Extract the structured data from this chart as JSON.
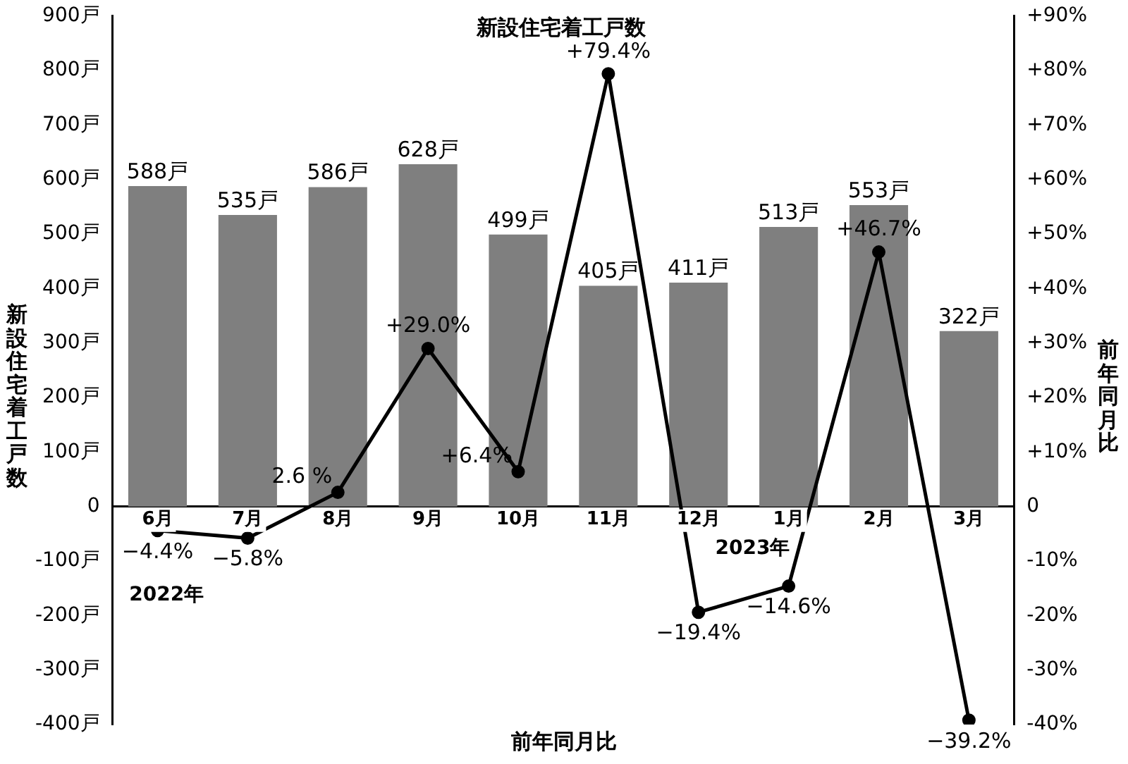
{
  "chart_data": {
    "type": "bar",
    "title": "新設住宅着工戸数",
    "xlabel": "前年同月比",
    "ylabel": "新設住宅着工戸数",
    "y2label": "前年同月比",
    "categories": [
      "6月",
      "7月",
      "8月",
      "9月",
      "10月",
      "11月",
      "12月",
      "1月",
      "2月",
      "3月"
    ],
    "series": [
      {
        "color": "#7f7f7f",
        "values": [
          588,
          535,
          586,
          628,
          499,
          405,
          411,
          513,
          553,
          322
        ],
        "value_labels": [
          "588戸",
          "535戸",
          "586戸",
          "628戸",
          "499戸",
          "405戸",
          "411戸",
          "513戸",
          "553戸",
          "322戸"
        ]
      },
      {
        "type": "line",
        "axis": "y2",
        "color": "#000000",
        "values": [
          -4.4,
          -5.8,
          2.6,
          29.0,
          6.4,
          79.4,
          -19.4,
          -14.6,
          46.7,
          -39.2
        ],
        "value_labels": [
          "−4.4%",
          "−5.8%",
          "2.6 %",
          "+29.0%",
          "+6.4%",
          "+79.4%",
          "−19.4%",
          "−14.6%",
          "+46.7%",
          "−39.2%"
        ]
      }
    ],
    "ylim": [
      -400,
      900
    ],
    "yticks": [
      {
        "value": -400,
        "label": "-400戸"
      },
      {
        "value": -300,
        "label": "-300戸"
      },
      {
        "value": -200,
        "label": "-200戸"
      },
      {
        "value": -100,
        "label": "-100戸"
      },
      0,
      {
        "value": 100,
        "label": "100戸"
      },
      {
        "value": 200,
        "label": "200戸"
      },
      {
        "value": 300,
        "label": "300戸"
      },
      {
        "value": 400,
        "label": "400戸"
      },
      {
        "value": 500,
        "label": "500戸"
      },
      {
        "value": 600,
        "label": "600戸"
      },
      {
        "value": 700,
        "label": "700戸"
      },
      {
        "value": 800,
        "label": "800戸"
      },
      {
        "value": 900,
        "label": "900戸"
      }
    ],
    "y2lim": [
      -40,
      90
    ],
    "y2ticks": [
      {
        "value": -40,
        "label": "-40%"
      },
      {
        "value": -30,
        "label": "-30%"
      },
      {
        "value": -20,
        "label": "-20%"
      },
      {
        "value": -10,
        "label": "-10%"
      },
      0,
      {
        "value": 10,
        "label": "+10%"
      },
      {
        "value": 20,
        "label": "+20%"
      },
      {
        "value": 30,
        "label": "+30%"
      },
      {
        "value": 40,
        "label": "+40%"
      },
      {
        "value": 50,
        "label": "+50%"
      },
      {
        "value": 60,
        "label": "+60%"
      },
      {
        "value": 70,
        "label": "+70%"
      },
      {
        "value": 80,
        "label": "+80%"
      },
      {
        "value": 90,
        "label": "+90%"
      }
    ],
    "annotations": [
      "2022年",
      "2023年"
    ],
    "marker": "circle",
    "line_style": "solid",
    "grid": false,
    "legend": false
  }
}
